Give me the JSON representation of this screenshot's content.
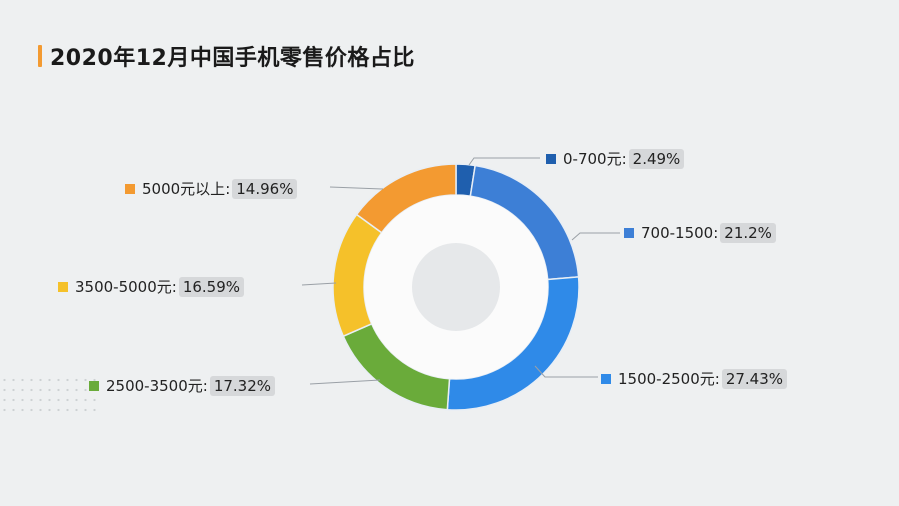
{
  "title": "2020年12月中国手机零售价格占比",
  "chart_data": {
    "type": "pie",
    "variant": "donut",
    "title": "2020年12月中国手机零售价格占比",
    "categories": [
      "0-700元",
      "700-1500",
      "1500-2500元",
      "2500-3500元",
      "3500-5000元",
      "5000元以上"
    ],
    "values": [
      2.49,
      21.2,
      27.43,
      17.32,
      16.59,
      14.96
    ],
    "unit": "%",
    "colors": [
      "#1f5fae",
      "#3d7fd6",
      "#2f8ae8",
      "#6aab3a",
      "#f5c12a",
      "#f39a31"
    ],
    "start_angle": "12 o'clock",
    "direction": "clockwise",
    "legend": "callout labels"
  },
  "labels": [
    {
      "name": "0-700元",
      "sep": ":",
      "value": "2.49%"
    },
    {
      "name": "700-1500",
      "sep": ":",
      "value": "21.2%"
    },
    {
      "name": "1500-2500元",
      "sep": ":",
      "value": "27.43%"
    },
    {
      "name": "2500-3500元",
      "sep": ":",
      "value": "17.32%"
    },
    {
      "name": "3500-5000元",
      "sep": ":",
      "value": "16.59%"
    },
    {
      "name": "5000元以上",
      "sep": ":",
      "value": "14.96%"
    }
  ]
}
